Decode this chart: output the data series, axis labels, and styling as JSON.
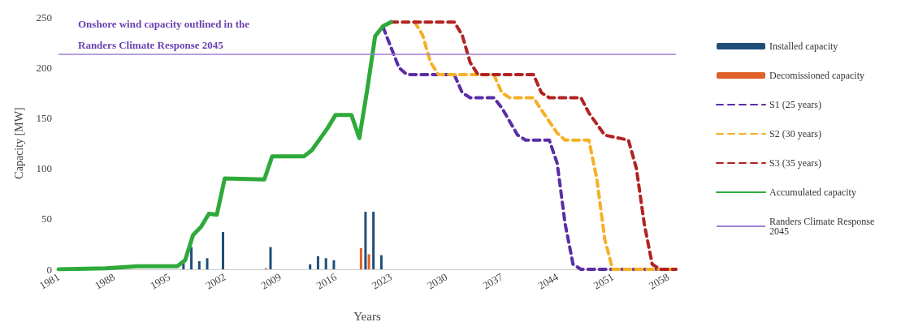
{
  "chart_data": {
    "type": "line",
    "xlabel": "Years",
    "ylabel": "Capacity [MW]",
    "annotations": [
      "Onshore wind capacity outlined in the Randers Climate Response 2045"
    ],
    "xlim": [
      1981,
      2059
    ],
    "xticks": [
      1981,
      1988,
      1995,
      2002,
      2009,
      2016,
      2023,
      2030,
      2037,
      2044,
      2051,
      2058
    ],
    "ylim": [
      0,
      250
    ],
    "yticks": [
      0,
      50,
      100,
      150,
      200,
      250
    ],
    "grid": false,
    "legend": "right",
    "marker": "none",
    "ref_lines": [
      {
        "axis": "y",
        "value": 213,
        "label": "Randers Climate Response 2045",
        "color": "#a07fd0",
        "line_style": "solid"
      }
    ],
    "series": [
      {
        "name": "Installed capacity",
        "type": "bar",
        "color": "#1f4e79",
        "x": [
          1997,
          1998,
          1999,
          2000,
          2002,
          2008,
          2013,
          2014,
          2015,
          2016,
          2020,
          2021,
          2022
        ],
        "values": [
          8,
          22,
          8,
          11,
          37,
          22,
          5,
          13,
          11,
          9,
          57,
          57,
          14
        ]
      },
      {
        "name": "Decomissioned capacity",
        "type": "bar",
        "color": "#e0622a",
        "x": [
          2007,
          2019,
          2020
        ],
        "values": [
          1,
          21,
          15
        ]
      },
      {
        "name": "S1 (25 years)",
        "line_style": "dashed",
        "color": "#5b2da6",
        "x": [
          2022,
          2023,
          2024,
          2025,
          2031,
          2032,
          2033,
          2036,
          2037,
          2039,
          2040,
          2043,
          2044,
          2045,
          2046,
          2047,
          2059
        ],
        "values": [
          240,
          220,
          200,
          193,
          193,
          175,
          170,
          170,
          160,
          133,
          128,
          128,
          105,
          45,
          5,
          0,
          0
        ]
      },
      {
        "name": "S2 (30 years)",
        "line_style": "dashed",
        "color": "#f5b027",
        "x": [
          2026,
          2027,
          2028,
          2029,
          2036,
          2037,
          2038,
          2041,
          2042,
          2044,
          2045,
          2048,
          2049,
          2050,
          2051,
          2059
        ],
        "values": [
          245,
          232,
          205,
          193,
          193,
          175,
          170,
          170,
          158,
          135,
          128,
          128,
          90,
          30,
          0,
          0
        ]
      },
      {
        "name": "S3 (35 years)",
        "line_style": "dashed",
        "color": "#b22222",
        "x": [
          2023,
          2031,
          2032,
          2033,
          2034,
          2041,
          2042,
          2043,
          2047,
          2048,
          2050,
          2053,
          2054,
          2055,
          2056,
          2057,
          2059
        ],
        "values": [
          245,
          245,
          232,
          205,
          193,
          193,
          175,
          170,
          170,
          155,
          133,
          128,
          100,
          45,
          5,
          0,
          0
        ]
      },
      {
        "name": "Accumulated capacity",
        "line_style": "solid",
        "color": "#2eaa3a",
        "x": [
          1981,
          1987,
          1991,
          1996,
          1997,
          1998,
          1999,
          2000,
          2001,
          2002,
          2007,
          2008,
          2012,
          2013,
          2015,
          2016,
          2018,
          2019,
          2020,
          2021,
          2022,
          2023
        ],
        "values": [
          0,
          1,
          3,
          3,
          9,
          34,
          42,
          55,
          54,
          90,
          89,
          112,
          112,
          118,
          140,
          153,
          153,
          130,
          178,
          231,
          241,
          245
        ]
      }
    ]
  }
}
